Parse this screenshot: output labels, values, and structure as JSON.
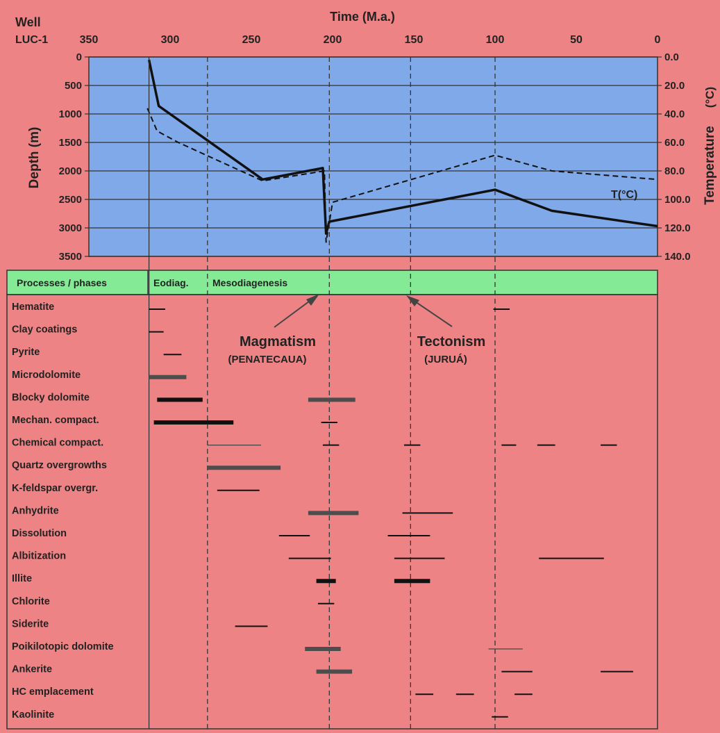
{
  "header": {
    "well_label": "Well",
    "well_name": "LUC-1",
    "top_axis_title": "Time (M.a.)",
    "left_axis_title": "Depth (m)",
    "right_axis_title": "Temperature",
    "right_axis_unit": "(°C)",
    "temp_curve_label": "T(°C)"
  },
  "phase_bar": {
    "header_label": "Processes / phases",
    "eodiag_label": "Eodiag.",
    "mesodiag_label": "Mesodiagenesis"
  },
  "events": {
    "magmatism_title": "Magmatism",
    "magmatism_sub": "(PENATECAUA)",
    "tectonism_title": "Tectonism",
    "tectonism_sub": "(JURUÁ)"
  },
  "colors": {
    "background": "#ed8384",
    "plot_fill": "#7fa9e9",
    "phase_fill": "#84ea96",
    "burial_line": "#111111",
    "temperature_line": "#111111",
    "process_bar_dark": "#111111",
    "process_bar_grey": "#4d4d4d"
  },
  "chart_data": {
    "type": "line",
    "title": "",
    "xlabel": "Time (M.a.)",
    "ylabel": "Depth (m)",
    "y2label": "Temperature (°C)",
    "x_reversed": true,
    "xlim": [
      350,
      0
    ],
    "ylim": [
      3500,
      0
    ],
    "y2lim": [
      140,
      0
    ],
    "x_ticks": [
      "350",
      "300",
      "250",
      "200",
      "150",
      "100",
      "50",
      "0"
    ],
    "y_ticks": [
      "0",
      "500",
      "1000",
      "1500",
      "2000",
      "2500",
      "3000",
      "3500"
    ],
    "y2_ticks": [
      "0.0",
      "20.0",
      "40.0",
      "60.0",
      "80.0",
      "100.0",
      "120.0",
      "140.0"
    ],
    "grid": "horizontal",
    "vertical_markers": [
      313,
      277,
      202,
      152,
      100
    ],
    "series": [
      {
        "style": "solid",
        "x": [
          313,
          307,
          243,
          206,
          204,
          202,
          100,
          65,
          0
        ],
        "y": [
          50,
          860,
          2150,
          1950,
          3100,
          2890,
          2330,
          2700,
          2970
        ]
      },
      {
        "name": "T(°C)",
        "style": "dashed",
        "x": [
          314,
          308,
          295,
          243,
          205,
          204,
          200,
          100,
          65,
          0
        ],
        "y": [
          36,
          52,
          60,
          87,
          80,
          130,
          102,
          69,
          80,
          86
        ]
      }
    ],
    "processes": [
      {
        "name": "Hematite",
        "segments": [
          {
            "x": [
              313,
              303
            ],
            "weight": "thin"
          },
          {
            "x": [
              101,
              91
            ],
            "weight": "thin"
          }
        ]
      },
      {
        "name": "Clay coatings",
        "segments": [
          {
            "x": [
              313,
              304
            ],
            "weight": "thin"
          }
        ]
      },
      {
        "name": "Pyrite",
        "segments": [
          {
            "x": [
              304,
              293
            ],
            "weight": "thin"
          }
        ]
      },
      {
        "name": "Microdolomite",
        "segments": [
          {
            "x": [
              313,
              290
            ],
            "weight": "medium"
          }
        ]
      },
      {
        "name": "Blocky dolomite",
        "segments": [
          {
            "x": [
              308,
              280
            ],
            "weight": "thick"
          },
          {
            "x": [
              215,
              186
            ],
            "weight": "medium"
          }
        ]
      },
      {
        "name": "Mechan. compact.",
        "segments": [
          {
            "x": [
              310,
              261
            ],
            "weight": "thick"
          },
          {
            "x": [
              207,
              197
            ],
            "weight": "thin"
          }
        ]
      },
      {
        "name": "Chemical compact.",
        "segments": [
          {
            "x": [
              277,
              244
            ],
            "weight": "hair"
          },
          {
            "x": [
              206,
              196
            ],
            "weight": "thin"
          },
          {
            "x": [
              156,
              146
            ],
            "weight": "thin"
          },
          {
            "x": [
              96,
              87
            ],
            "weight": "thin"
          },
          {
            "x": [
              74,
              63
            ],
            "weight": "thin"
          },
          {
            "x": [
              35,
              25
            ],
            "weight": "thin"
          }
        ]
      },
      {
        "name": "Quartz overgrowths",
        "segments": [
          {
            "x": [
              277,
              232
            ],
            "weight": "medium"
          }
        ]
      },
      {
        "name": "K-feldspar overgr.",
        "segments": [
          {
            "x": [
              271,
              245
            ],
            "weight": "thin"
          }
        ]
      },
      {
        "name": "Anhydrite",
        "segments": [
          {
            "x": [
              215,
              184
            ],
            "weight": "medium"
          },
          {
            "x": [
              157,
              126
            ],
            "weight": "thin"
          }
        ]
      },
      {
        "name": "Dissolution",
        "segments": [
          {
            "x": [
              233,
              214
            ],
            "weight": "thin"
          },
          {
            "x": [
              166,
              140
            ],
            "weight": "thin"
          }
        ]
      },
      {
        "name": "Albitization",
        "segments": [
          {
            "x": [
              227,
              201
            ],
            "weight": "thin"
          },
          {
            "x": [
              162,
              131
            ],
            "weight": "thin"
          },
          {
            "x": [
              73,
              33
            ],
            "weight": "thin"
          }
        ]
      },
      {
        "name": "Illite",
        "segments": [
          {
            "x": [
              210,
              198
            ],
            "weight": "thick"
          },
          {
            "x": [
              162,
              140
            ],
            "weight": "thick"
          }
        ]
      },
      {
        "name": "Chlorite",
        "segments": [
          {
            "x": [
              209,
              199
            ],
            "weight": "thin"
          }
        ]
      },
      {
        "name": "Siderite",
        "segments": [
          {
            "x": [
              260,
              240
            ],
            "weight": "thin"
          }
        ]
      },
      {
        "name": "Poikilotopic dolomite",
        "segments": [
          {
            "x": [
              217,
              195
            ],
            "weight": "medium"
          },
          {
            "x": [
              104,
              83
            ],
            "weight": "hair"
          }
        ]
      },
      {
        "name": "Ankerite",
        "segments": [
          {
            "x": [
              210,
              188
            ],
            "weight": "medium"
          },
          {
            "x": [
              96,
              77
            ],
            "weight": "thin"
          },
          {
            "x": [
              35,
              15
            ],
            "weight": "thin"
          }
        ]
      },
      {
        "name": "HC emplacement",
        "segments": [
          {
            "x": [
              149,
              138
            ],
            "weight": "thin"
          },
          {
            "x": [
              124,
              113
            ],
            "weight": "thin"
          },
          {
            "x": [
              88,
              77
            ],
            "weight": "thin"
          }
        ]
      },
      {
        "name": "Kaolinite",
        "segments": [
          {
            "x": [
              102,
              92
            ],
            "weight": "thin"
          }
        ]
      }
    ]
  }
}
